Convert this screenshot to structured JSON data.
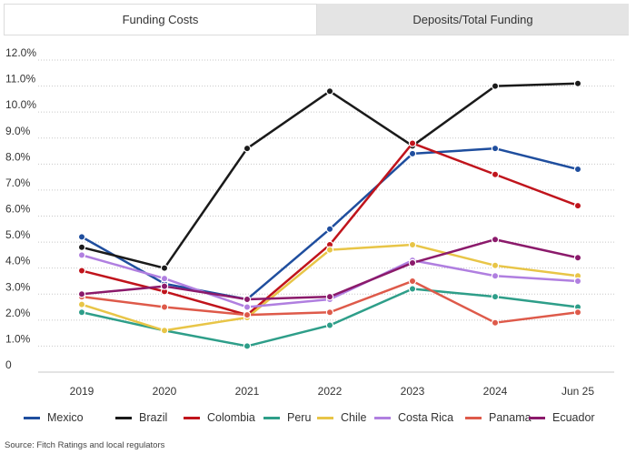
{
  "tabs": [
    {
      "label": "Funding Costs",
      "active": true
    },
    {
      "label": "Deposits/Total Funding",
      "active": false
    }
  ],
  "chart_data": {
    "type": "line",
    "title": "Funding Costs",
    "xlabel": "",
    "ylabel": "",
    "ylim": [
      0,
      12
    ],
    "y_ticks": [
      {
        "value": 0,
        "label": "0"
      },
      {
        "value": 1,
        "label": "1.0%"
      },
      {
        "value": 2,
        "label": "2.0%"
      },
      {
        "value": 3,
        "label": "3.0%"
      },
      {
        "value": 4,
        "label": "4.0%"
      },
      {
        "value": 5,
        "label": "5.0%"
      },
      {
        "value": 6,
        "label": "6.0%"
      },
      {
        "value": 7,
        "label": "7.0%"
      },
      {
        "value": 8,
        "label": "8.0%"
      },
      {
        "value": 9,
        "label": "9.0%"
      },
      {
        "value": 10,
        "label": "10.0%"
      },
      {
        "value": 11,
        "label": "11.0%"
      },
      {
        "value": 12,
        "label": "12.0%"
      }
    ],
    "categories": [
      "2019",
      "2020",
      "2021",
      "2022",
      "2023",
      "2024",
      "Jun 25"
    ],
    "legend_position": "bottom",
    "series": [
      {
        "name": "Mexico",
        "color": "#1f4e9e",
        "values": [
          5.2,
          3.4,
          2.8,
          5.5,
          8.4,
          8.6,
          7.8
        ]
      },
      {
        "name": "Brazil",
        "color": "#1a1a1a",
        "values": [
          4.8,
          4.0,
          8.6,
          10.8,
          8.7,
          11.0,
          11.1
        ]
      },
      {
        "name": "Colombia",
        "color": "#c0141c",
        "values": [
          3.9,
          3.1,
          2.2,
          4.9,
          8.8,
          7.6,
          6.4
        ]
      },
      {
        "name": "Peru",
        "color": "#2e9e89",
        "values": [
          2.3,
          1.6,
          1.0,
          1.8,
          3.2,
          2.9,
          2.5
        ]
      },
      {
        "name": "Chile",
        "color": "#e8c547",
        "values": [
          2.6,
          1.6,
          2.1,
          4.7,
          4.9,
          4.1,
          3.7
        ]
      },
      {
        "name": "Costa Rica",
        "color": "#b07fe0",
        "values": [
          4.5,
          3.6,
          2.5,
          2.8,
          4.3,
          3.7,
          3.5
        ]
      },
      {
        "name": "Panama",
        "color": "#de5a4a",
        "values": [
          2.9,
          2.5,
          2.2,
          2.3,
          3.5,
          1.9,
          2.3
        ]
      },
      {
        "name": "Ecuador",
        "color": "#8b1a6b",
        "values": [
          3.0,
          3.3,
          2.8,
          2.9,
          4.2,
          5.1,
          4.4
        ]
      }
    ]
  },
  "source": "Source: Fitch Ratings and local regulators"
}
